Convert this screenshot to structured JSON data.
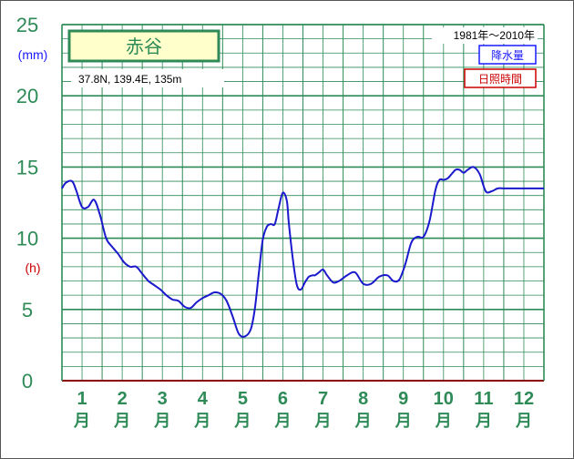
{
  "chart_data": {
    "type": "line",
    "station": "赤谷",
    "location": "37.8N,  139.4E,  135m",
    "period": "1981年〜2010年",
    "legend": {
      "precipitation": "降水量",
      "sunshine": "日照時間"
    },
    "y_unit_top": "(mm)",
    "y_unit_mid": "(h)",
    "ylim": [
      0,
      25
    ],
    "yticks": [
      "0",
      "5",
      "10",
      "15",
      "20",
      "25"
    ],
    "months": [
      {
        "num": "1",
        "unit": "月"
      },
      {
        "num": "2",
        "unit": "月"
      },
      {
        "num": "3",
        "unit": "月"
      },
      {
        "num": "4",
        "unit": "月"
      },
      {
        "num": "5",
        "unit": "月"
      },
      {
        "num": "6",
        "unit": "月"
      },
      {
        "num": "7",
        "unit": "月"
      },
      {
        "num": "8",
        "unit": "月"
      },
      {
        "num": "9",
        "unit": "月"
      },
      {
        "num": "10",
        "unit": "月"
      },
      {
        "num": "11",
        "unit": "月"
      },
      {
        "num": "12",
        "unit": "月"
      }
    ],
    "xlim": [
      0.5,
      12.5
    ],
    "series": [
      {
        "name": "降水量",
        "color": "#1a1acc",
        "x": [
          0.5,
          0.6,
          0.75,
          0.85,
          1.0,
          1.15,
          1.3,
          1.45,
          1.6,
          1.75,
          1.9,
          2.05,
          2.2,
          2.35,
          2.5,
          2.65,
          2.8,
          2.95,
          3.1,
          3.25,
          3.4,
          3.55,
          3.7,
          3.85,
          4.0,
          4.15,
          4.3,
          4.45,
          4.6,
          4.75,
          4.9,
          5.05,
          5.2,
          5.3,
          5.4,
          5.5,
          5.6,
          5.7,
          5.8,
          5.9,
          6.0,
          6.1,
          6.15,
          6.25,
          6.35,
          6.45,
          6.55,
          6.65,
          6.75,
          6.8,
          6.9,
          7.0,
          7.1,
          7.25,
          7.4,
          7.6,
          7.8,
          8.0,
          8.2,
          8.4,
          8.6,
          8.75,
          8.9,
          9.05,
          9.2,
          9.35,
          9.5,
          9.65,
          9.8,
          9.9,
          10.0,
          10.1,
          10.2,
          10.3,
          10.4,
          10.5,
          10.6,
          10.75,
          10.9,
          11.05,
          11.2,
          11.35,
          11.5,
          11.65,
          11.8,
          11.95,
          12.1,
          12.25,
          12.4,
          12.5
        ],
        "y": [
          13.5,
          13.9,
          14.0,
          13.4,
          12.2,
          12.2,
          12.7,
          11.6,
          10.0,
          9.4,
          8.9,
          8.3,
          8.0,
          8.0,
          7.5,
          7.0,
          6.7,
          6.4,
          6.0,
          5.7,
          5.6,
          5.2,
          5.1,
          5.5,
          5.8,
          6.0,
          6.2,
          6.1,
          5.6,
          4.5,
          3.3,
          3.1,
          3.6,
          5.0,
          7.5,
          9.9,
          10.8,
          11.0,
          11.0,
          12.2,
          13.2,
          12.6,
          11.0,
          8.5,
          6.7,
          6.4,
          6.9,
          7.3,
          7.4,
          7.4,
          7.6,
          7.8,
          7.4,
          6.9,
          7.0,
          7.4,
          7.6,
          6.8,
          6.8,
          7.3,
          7.4,
          7.0,
          7.1,
          8.2,
          9.7,
          10.1,
          10.1,
          11.2,
          13.4,
          14.1,
          14.1,
          14.2,
          14.5,
          14.8,
          14.8,
          14.6,
          14.8,
          15.0,
          14.5,
          13.3,
          13.3,
          13.5,
          13.5,
          13.5,
          13.5,
          13.5,
          13.5,
          13.5,
          13.5,
          13.5
        ]
      }
    ]
  }
}
